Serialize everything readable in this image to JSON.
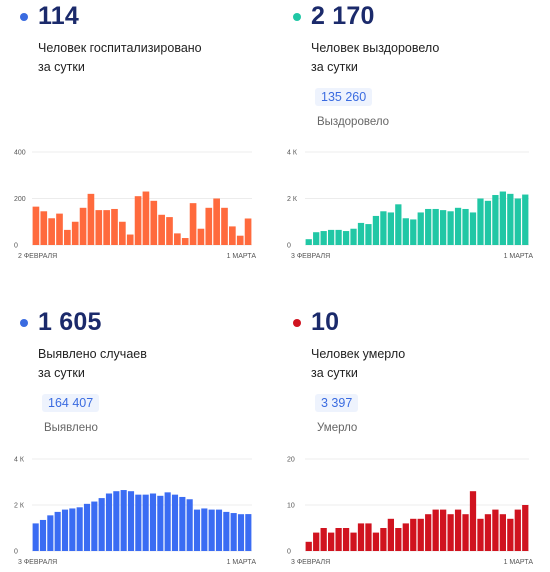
{
  "panels": [
    {
      "id": "hospitalized",
      "color": "#3a6be0",
      "bar_color": "#ff6a3d",
      "value": "114",
      "label_line1": "Человек госпитализировано",
      "label_line2": "за сутки",
      "total": "",
      "total_label": ""
    },
    {
      "id": "recovered",
      "color": "#1fc7a5",
      "bar_color": "#21c7a5",
      "value": "2 170",
      "label_line1": "Человек выздоровело",
      "label_line2": "за сутки",
      "total": "135 260",
      "total_label": "Выздоровело"
    },
    {
      "id": "cases",
      "color": "#3a6be0",
      "bar_color": "#3b6cf3",
      "value": "1 605",
      "label_line1": "Выявлено случаев",
      "label_line2": "за сутки",
      "total": "164 407",
      "total_label": "Выявлено"
    },
    {
      "id": "deaths",
      "color": "#d0131f",
      "bar_color": "#d0131f",
      "value": "10",
      "label_line1": "Человек умерло",
      "label_line2": "за сутки",
      "total": "3 397",
      "total_label": "Умерло"
    }
  ],
  "chart_data": [
    {
      "type": "bar",
      "name": "hospitalized",
      "x_start_label": "2 ФЕВРАЛЯ",
      "x_end_label": "1 МАРТА",
      "y_ticks": [
        {
          "value": 0,
          "label": "0"
        },
        {
          "value": 200,
          "label": "200"
        },
        {
          "value": 400,
          "label": "400"
        }
      ],
      "ylim": [
        0,
        400
      ],
      "values": [
        165,
        145,
        115,
        135,
        65,
        100,
        160,
        220,
        150,
        150,
        155,
        100,
        45,
        210,
        230,
        190,
        130,
        120,
        50,
        30,
        180,
        70,
        160,
        200,
        160,
        80,
        40,
        114
      ],
      "grid": true
    },
    {
      "type": "bar",
      "name": "recovered",
      "x_start_label": "3 ФЕВРАЛЯ",
      "x_end_label": "1 МАРТА",
      "y_ticks": [
        {
          "value": 0,
          "label": "0"
        },
        {
          "value": 2000,
          "label": "2 К"
        },
        {
          "value": 4000,
          "label": "4 К"
        }
      ],
      "ylim": [
        0,
        4000
      ],
      "values": [
        250,
        550,
        600,
        650,
        650,
        600,
        700,
        950,
        900,
        1250,
        1450,
        1400,
        1750,
        1150,
        1100,
        1400,
        1550,
        1550,
        1500,
        1450,
        1600,
        1550,
        1400,
        2000,
        1900,
        2150,
        2300,
        2200,
        2000,
        2170
      ],
      "grid": true
    },
    {
      "type": "bar",
      "name": "cases",
      "x_start_label": "3 ФЕВРАЛЯ",
      "x_end_label": "1 МАРТА",
      "y_ticks": [
        {
          "value": 0,
          "label": "0"
        },
        {
          "value": 2000,
          "label": "2 К"
        },
        {
          "value": 4000,
          "label": "4 К"
        }
      ],
      "ylim": [
        0,
        4000
      ],
      "values": [
        1200,
        1350,
        1550,
        1700,
        1800,
        1850,
        1900,
        2050,
        2150,
        2300,
        2500,
        2600,
        2650,
        2600,
        2450,
        2450,
        2500,
        2400,
        2550,
        2450,
        2350,
        2250,
        1800,
        1850,
        1800,
        1800,
        1700,
        1650,
        1600,
        1605
      ],
      "grid": true
    },
    {
      "type": "bar",
      "name": "deaths",
      "x_start_label": "3 ФЕВРАЛЯ",
      "x_end_label": "1 МАРТА",
      "y_ticks": [
        {
          "value": 0,
          "label": "0"
        },
        {
          "value": 10,
          "label": "10"
        },
        {
          "value": 20,
          "label": "20"
        }
      ],
      "ylim": [
        0,
        20
      ],
      "values": [
        2,
        4,
        5,
        4,
        5,
        5,
        4,
        6,
        6,
        4,
        5,
        7,
        5,
        6,
        7,
        7,
        8,
        9,
        9,
        8,
        9,
        8,
        13,
        7,
        8,
        9,
        8,
        7,
        9,
        10
      ],
      "grid": true
    }
  ]
}
